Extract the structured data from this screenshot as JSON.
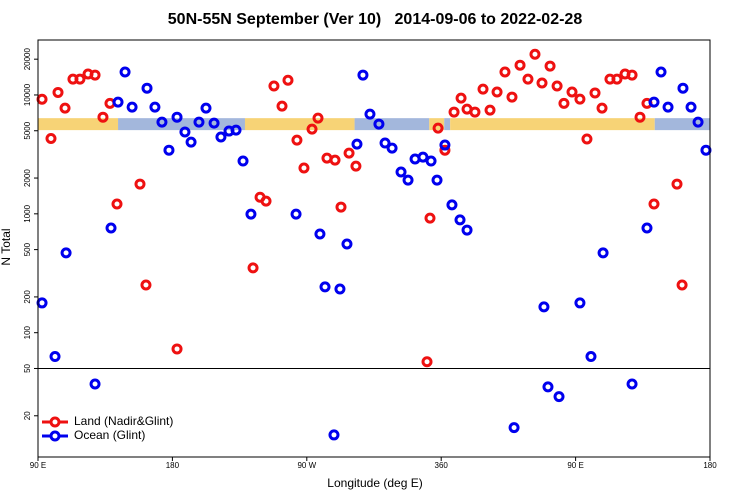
{
  "chart_data": {
    "type": "scatter",
    "title": "50N-55N September (Ver 10)   2014-09-06 to 2022-02-28",
    "x_label": "Longitude (deg E)",
    "y_label": "N Total",
    "xlim": [
      90,
      540
    ],
    "xticks": [
      {
        "value": 90,
        "label": "90 E"
      },
      180,
      {
        "value": 270,
        "label": "90 W"
      },
      360,
      {
        "value": 450,
        "label": "90 E"
      },
      {
        "value": 540,
        "label": "180"
      }
    ],
    "ylim": [
      9,
      29000
    ],
    "ylog": true,
    "yticks": [
      20,
      50,
      100,
      200,
      500,
      1000,
      2000,
      5000,
      10000,
      20000
    ],
    "hline": 50,
    "legend": "bottom-left",
    "band": {
      "ylim": [
        5060,
        6380
      ],
      "segments": [
        {
          "x": [
            90,
            143.6
          ],
          "color": "#f7d376"
        },
        {
          "x": [
            143.6,
            228.6
          ],
          "color": "#a3b7dc"
        },
        {
          "x": [
            228.6,
            302
          ],
          "color": "#f7d376"
        },
        {
          "x": [
            302,
            352
          ],
          "color": "#a3b7dc"
        },
        {
          "x": [
            352,
            362
          ],
          "color": "#f7d376"
        },
        {
          "x": [
            362,
            366
          ],
          "color": "#a3b7dc"
        },
        {
          "x": [
            366,
            503
          ],
          "color": "#f7d376"
        },
        {
          "x": [
            503,
            540
          ],
          "color": "#a3b7dc"
        }
      ]
    },
    "series": [
      {
        "name": "Land (Nadir&Glint)",
        "color": "#ee1111",
        "x": [
          92.7,
          98.7,
          103.4,
          108.1,
          113.4,
          118.1,
          123.5,
          128.2,
          133.5,
          138.2,
          142.9,
          158.3,
          162.3,
          183.1,
          234,
          238.7,
          242.7,
          248,
          253.4,
          257.4,
          263.4,
          268.1,
          273.5,
          277.5,
          283.5,
          288.9,
          292.9,
          298.3,
          302.9,
          350.5,
          352.5,
          357.9,
          362.5,
          368.6,
          373.3,
          377.3,
          382.6,
          388,
          392.7,
          397.4,
          402.7,
          407.4,
          412.8,
          418.1,
          422.8,
          427.5,
          432.9,
          437.6,
          442.2,
          447.6,
          452.9,
          457.6,
          463,
          467.7,
          473,
          477.7,
          483.1,
          487.8,
          493.1,
          497.8,
          502.5,
          517.9,
          521.3
        ],
        "values": [
          9200,
          4300,
          10500,
          7750,
          13600,
          13600,
          15000,
          14700,
          6500,
          8500,
          1210,
          1780,
          252,
          73,
          351,
          1380,
          1280,
          11900,
          8050,
          13300,
          4170,
          2430,
          5160,
          6380,
          2940,
          2830,
          1140,
          3240,
          2520,
          57,
          920,
          5260,
          3430,
          7180,
          9400,
          7600,
          7180,
          11200,
          7450,
          10600,
          15600,
          9600,
          17800,
          13600,
          22000,
          12600,
          17500,
          11900,
          8500,
          10600,
          9230,
          4260,
          10400,
          7750,
          13600,
          13600,
          15000,
          14700,
          6500,
          8500,
          1210,
          1780,
          252
        ]
      },
      {
        "name": "Ocean (Glint)",
        "color": "#0000ee",
        "x": [
          92.7,
          101.4,
          108.8,
          128.2,
          138.9,
          143.6,
          148.3,
          153,
          163,
          168.3,
          173,
          177.7,
          183.1,
          188.4,
          192.5,
          197.8,
          202.5,
          207.9,
          212.5,
          217.9,
          222.6,
          227.3,
          232.6,
          262.8,
          278.8,
          282.2,
          288.2,
          292.2,
          296.9,
          303.6,
          307.6,
          312.3,
          318.3,
          322.4,
          327.1,
          333.1,
          337.8,
          342.5,
          347.8,
          353.2,
          357.2,
          362.5,
          367.2,
          372.6,
          377.3,
          408.8,
          428.8,
          431.5,
          438.9,
          452.9,
          460.3,
          468.4,
          487.8,
          497.8,
          502.5,
          507.2,
          511.9,
          521.9,
          527.3,
          532,
          537.3
        ],
        "values": [
          178,
          63,
          469,
          37,
          760,
          8700,
          15600,
          7900,
          11400,
          7900,
          5910,
          3430,
          6500,
          4880,
          4010,
          5910,
          7750,
          5800,
          4430,
          4970,
          5060,
          2780,
          995,
          995,
          676,
          243,
          13.8,
          233,
          557,
          3860,
          14700,
          6900,
          5690,
          3940,
          3570,
          2250,
          1920,
          2890,
          3000,
          2780,
          1920,
          3790,
          1190,
          890,
          730,
          15.9,
          165,
          35,
          29,
          178,
          63,
          469,
          37,
          760,
          8700,
          15600,
          7900,
          11400,
          7900,
          5910,
          3430
        ]
      }
    ]
  }
}
